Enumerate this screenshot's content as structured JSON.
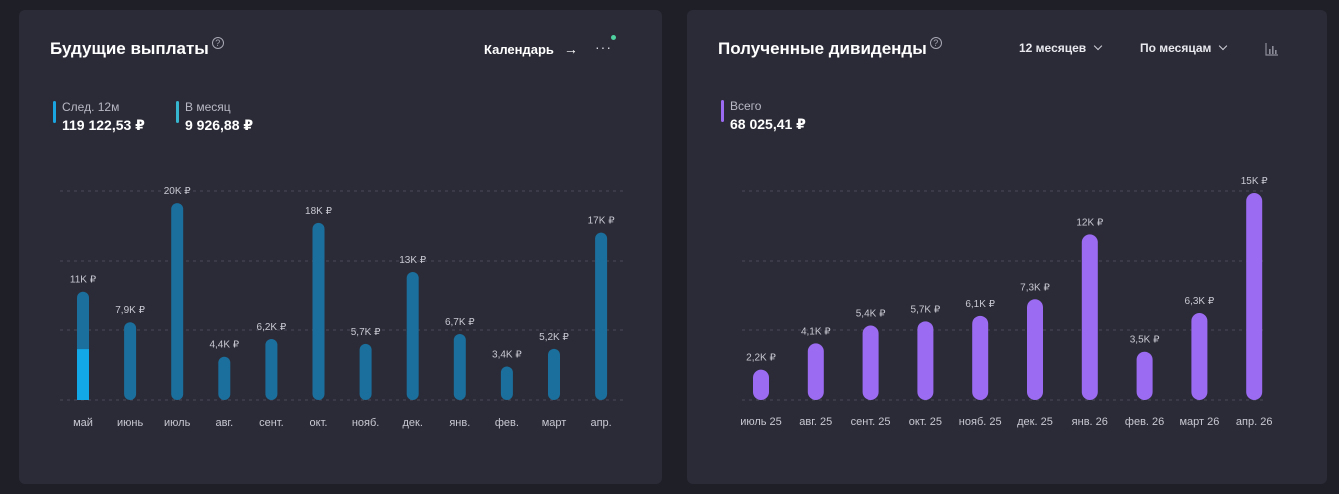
{
  "left_card": {
    "title": "Будущие выплаты",
    "help_icon": "?",
    "calendar_link": "Календарь",
    "arrow_icon": "→",
    "more_icon": "···",
    "stats": [
      {
        "label": "След. 12м",
        "value": "119 122,53 ₽",
        "color": "#1aa5e0"
      },
      {
        "label": "В месяц",
        "value": "9 926,88 ₽",
        "color": "#36b6cf"
      }
    ]
  },
  "right_card": {
    "title": "Полученные дивиденды",
    "help_icon": "?",
    "period_select": "12 месяцев",
    "group_select": "По месяцам",
    "chart_toggle_icon": "bar-chart-icon",
    "stats": [
      {
        "label": "Всего",
        "value": "68 025,41 ₽",
        "color": "#9b6bf2"
      }
    ]
  },
  "chart_data": [
    {
      "type": "bar",
      "categories": [
        "май",
        "июнь",
        "июль",
        "авг.",
        "сент.",
        "окт.",
        "нояб.",
        "дек.",
        "янв.",
        "фев.",
        "март",
        "апр."
      ],
      "values": [
        11000,
        7900,
        20000,
        4400,
        6200,
        18000,
        5700,
        13000,
        6700,
        3400,
        5200,
        17000
      ],
      "received_portion": [
        0,
        0,
        0,
        0,
        0,
        0,
        0,
        0,
        0,
        0,
        0,
        0
      ],
      "highlight_portion_first": 0.47,
      "data_labels": [
        "11K ₽",
        "7,9K ₽",
        "20K ₽",
        "4,4K ₽",
        "6,2K ₽",
        "18K ₽",
        "5,7K ₽",
        "13K ₽",
        "6,7K ₽",
        "3,4K ₽",
        "5,2K ₽",
        "17K ₽"
      ],
      "ylim": [
        0,
        21000
      ],
      "grid": true,
      "bar_color": "#1b6f9c",
      "highlight_color": "#12a7e6"
    },
    {
      "type": "bar",
      "categories": [
        "июль 25",
        "авг. 25",
        "сент. 25",
        "окт. 25",
        "нояб. 25",
        "дек. 25",
        "янв. 26",
        "фев. 26",
        "март 26",
        "апр. 26"
      ],
      "values": [
        2200,
        4100,
        5400,
        5700,
        6100,
        7300,
        12000,
        3500,
        6300,
        15000
      ],
      "data_labels": [
        "2,2K ₽",
        "4,1K ₽",
        "5,4K ₽",
        "5,7K ₽",
        "6,1K ₽",
        "7,3K ₽",
        "12K ₽",
        "3,5K ₽",
        "6,3K ₽",
        "15K ₽"
      ],
      "ylim": [
        0,
        15000
      ],
      "grid": true,
      "bar_color": "#9b6bf2"
    }
  ]
}
